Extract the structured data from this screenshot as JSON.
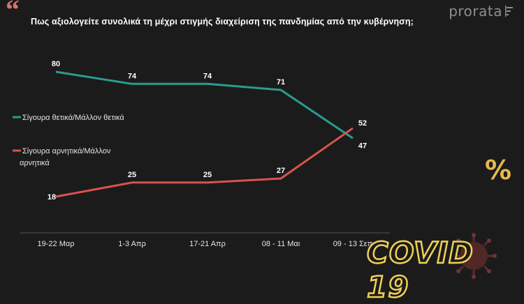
{
  "header": {
    "title": "Πως αξιολογείτε συνολικά τη μέχρι στιγμής διαχείριση της πανδημίας από την κυβέρνηση;",
    "quote_mark": "“",
    "brand": "prorata"
  },
  "chart_data": {
    "type": "line",
    "title": "Πως αξιολογείτε συνολικά τη μέχρι στιγμής διαχείριση της πανδημίας από την κυβέρνηση;",
    "categories": [
      "19-22 Μαρ",
      "1-3 Απρ",
      "17-21 Απρ",
      "08 - 11 Μαι",
      "09 - 13 Σεπ"
    ],
    "series": [
      {
        "name": "Σίγουρα θετικά/Μάλλον θετικά",
        "values": [
          80,
          74,
          74,
          71,
          47
        ],
        "color": "#2a9d8f"
      },
      {
        "name": "Σίγουρα αρνητικά/Μάλλον αρνητικά",
        "values": [
          18,
          25,
          25,
          27,
          52
        ],
        "color": "#d9534f"
      }
    ],
    "legend_position": "left",
    "grid": false,
    "ylim": [
      0,
      100
    ]
  },
  "decor": {
    "percent": "%",
    "covid_label": "COVID 19",
    "accent": "#f0d055"
  }
}
